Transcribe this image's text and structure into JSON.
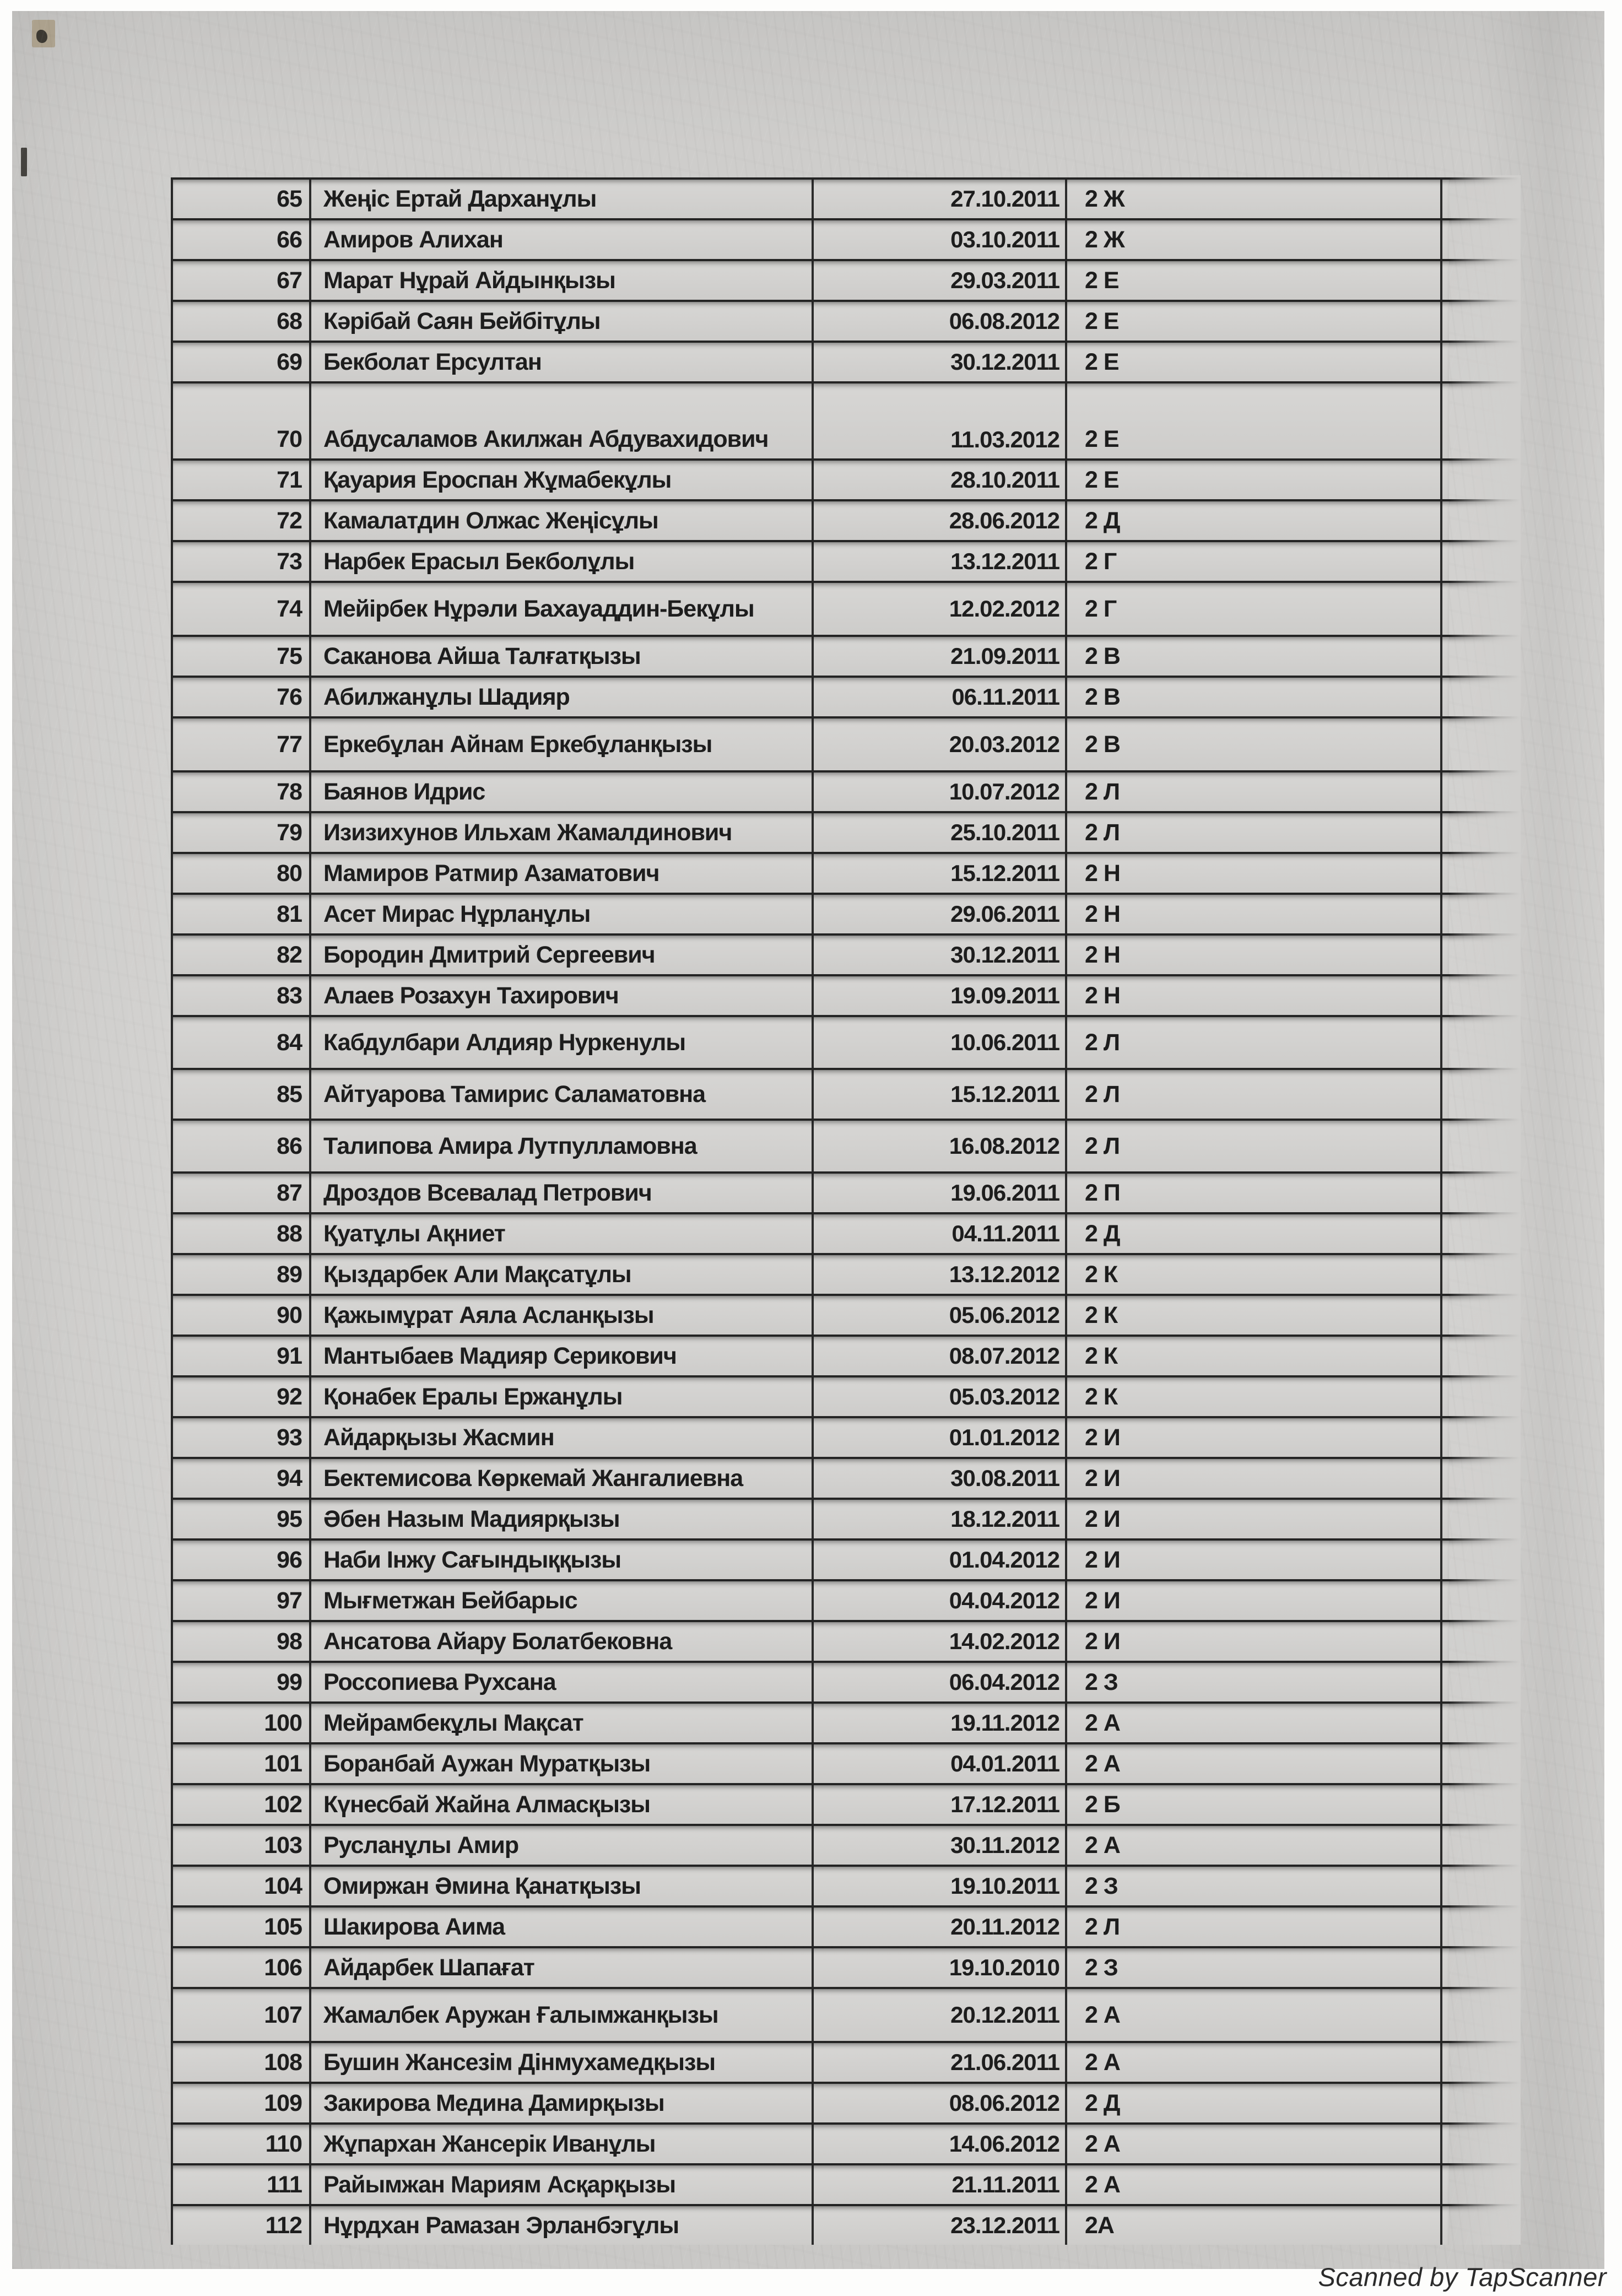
{
  "footer": {
    "scanned_by": "Scanned by TapScanner"
  },
  "table": {
    "columns": [
      "number",
      "full_name",
      "birth_date",
      "class"
    ],
    "rows": [
      {
        "n": "65",
        "name": "Жеңіс Ертай Дарханұлы",
        "date": "27.10.2011",
        "cls": "2 Ж"
      },
      {
        "n": "66",
        "name": "Амиров Алихан",
        "date": "03.10.2011",
        "cls": "2 Ж"
      },
      {
        "n": "67",
        "name": "Марат Нұрай Айдынқызы",
        "date": "29.03.2011",
        "cls": "2 Е"
      },
      {
        "n": "68",
        "name": "Кәрібай Саян Бейбітұлы",
        "date": "06.08.2012",
        "cls": "2 Е"
      },
      {
        "n": "69",
        "name": "Бекболат Ерсултан",
        "date": "30.12.2011",
        "cls": "2 Е"
      },
      {
        "n": "70",
        "name": "Абдусаламов Акилжан Абдувахидович",
        "date": "11.03.2012",
        "cls": "2 Е"
      },
      {
        "n": "71",
        "name": "Қауария Ероспан Жұмабекұлы",
        "date": "28.10.2011",
        "cls": "2 Е"
      },
      {
        "n": "72",
        "name": "Камалатдин Олжас Жеңісұлы",
        "date": "28.06.2012",
        "cls": "2 Д"
      },
      {
        "n": "73",
        "name": "Нарбек Ерасыл Бекболұлы",
        "date": "13.12.2011",
        "cls": "2 Г"
      },
      {
        "n": "74",
        "name": "Мейірбек Нұрәли Бахауаддин-Бекұлы",
        "date": "12.02.2012",
        "cls": "2 Г"
      },
      {
        "n": "75",
        "name": "Саканова Айша Талғатқызы",
        "date": "21.09.2011",
        "cls": "2 В"
      },
      {
        "n": "76",
        "name": "Абилжанұлы Шадияр",
        "date": "06.11.2011",
        "cls": "2 В"
      },
      {
        "n": "77",
        "name": "Еркебұлан Айнам Еркебұланқызы",
        "date": "20.03.2012",
        "cls": "2 В"
      },
      {
        "n": "78",
        "name": "Баянов Идрис",
        "date": "10.07.2012",
        "cls": "2 Л"
      },
      {
        "n": "79",
        "name": "Изизихунов Ильхам Жамалдинович",
        "date": "25.10.2011",
        "cls": "2 Л"
      },
      {
        "n": "80",
        "name": "Мамиров Ратмир Азаматович",
        "date": "15.12.2011",
        "cls": "2 Н"
      },
      {
        "n": "81",
        "name": "Асет Мирас Нұрланұлы",
        "date": "29.06.2011",
        "cls": "2 Н"
      },
      {
        "n": "82",
        "name": "Бородин Дмитрий Сергеевич",
        "date": "30.12.2011",
        "cls": "2 Н"
      },
      {
        "n": "83",
        "name": "Алаев Розахун Тахирович",
        "date": "19.09.2011",
        "cls": "2 Н"
      },
      {
        "n": "84",
        "name": "Кабдулбари Алдияр Нуркенулы",
        "date": "10.06.2011",
        "cls": "2 Л"
      },
      {
        "n": "85",
        "name": "Айтуарова Тамирис Саламатовна",
        "date": "15.12.2011",
        "cls": "2 Л"
      },
      {
        "n": "86",
        "name": "Талипова Амира Лутпулламовна",
        "date": "16.08.2012",
        "cls": "2 Л"
      },
      {
        "n": "87",
        "name": "Дроздов Всевалад Петрович",
        "date": "19.06.2011",
        "cls": "2 П"
      },
      {
        "n": "88",
        "name": "Қуатұлы Ақниет",
        "date": "04.11.2011",
        "cls": "2 Д"
      },
      {
        "n": "89",
        "name": "Қыздарбек Али Мақсатұлы",
        "date": "13.12.2012",
        "cls": "2 К"
      },
      {
        "n": "90",
        "name": "Қажымұрат Аяла Асланқызы",
        "date": "05.06.2012",
        "cls": "2 К"
      },
      {
        "n": "91",
        "name": "Мантыбаев Мадияр Серикович",
        "date": "08.07.2012",
        "cls": "2 К"
      },
      {
        "n": "92",
        "name": "Қонабек Ералы Ержанұлы",
        "date": "05.03.2012",
        "cls": "2 К"
      },
      {
        "n": "93",
        "name": "Айдарқызы Жасмин",
        "date": "01.01.2012",
        "cls": "2 И"
      },
      {
        "n": "94",
        "name": "Бектемисова Көркемай Жангалиевна",
        "date": "30.08.2011",
        "cls": "2 И"
      },
      {
        "n": "95",
        "name": "Әбен Назым Мадиярқызы",
        "date": "18.12.2011",
        "cls": "2 И"
      },
      {
        "n": "96",
        "name": "Наби Інжу Сағындыққызы",
        "date": "01.04.2012",
        "cls": "2 И"
      },
      {
        "n": "97",
        "name": "Мығметжан Бейбарыс",
        "date": "04.04.2012",
        "cls": "2 И"
      },
      {
        "n": "98",
        "name": "Ансатова Айару Болатбековна",
        "date": "14.02.2012",
        "cls": "2 И"
      },
      {
        "n": "99",
        "name": "Россопиева Рухсана",
        "date": "06.04.2012",
        "cls": "2 З"
      },
      {
        "n": "100",
        "name": "Мейрамбекұлы Мақсат",
        "date": "19.11.2012",
        "cls": "2 А"
      },
      {
        "n": "101",
        "name": "Боранбай Аужан Муратқызы",
        "date": "04.01.2011",
        "cls": "2 А"
      },
      {
        "n": "102",
        "name": "Күнесбай Жайна Алмасқызы",
        "date": "17.12.2011",
        "cls": "2 Б"
      },
      {
        "n": "103",
        "name": "Русланұлы Амир",
        "date": "30.11.2012",
        "cls": "2 А"
      },
      {
        "n": "104",
        "name": "Омиржан Әмина Қанатқызы",
        "date": "19.10.2011",
        "cls": "2 З"
      },
      {
        "n": "105",
        "name": "Шакирова Аима",
        "date": "20.11.2012",
        "cls": "2 Л"
      },
      {
        "n": "106",
        "name": "Айдарбек Шапағат",
        "date": "19.10.2010",
        "cls": "2 З"
      },
      {
        "n": "107",
        "name": "Жамалбек Аружан Ғалымжанқызы",
        "date": "20.12.2011",
        "cls": "2 А"
      },
      {
        "n": "108",
        "name": "Бушин Жансезім Дінмухамедқызы",
        "date": "21.06.2011",
        "cls": "2 А"
      },
      {
        "n": "109",
        "name": "Закирова Медина Дамирқызы",
        "date": "08.06.2012",
        "cls": "2 Д"
      },
      {
        "n": "110",
        "name": "Жұпархан Жансерік Иванұлы",
        "date": "14.06.2012",
        "cls": "2 А"
      },
      {
        "n": "111",
        "name": "Райымжан Мариям Асқарқызы",
        "date": "21.11.2011",
        "cls": "2 А"
      },
      {
        "n": "112",
        "name": "Нұрдхан Рамазан Эрланбэгұлы",
        "date": "23.12.2011",
        "cls": "2А"
      }
    ]
  }
}
